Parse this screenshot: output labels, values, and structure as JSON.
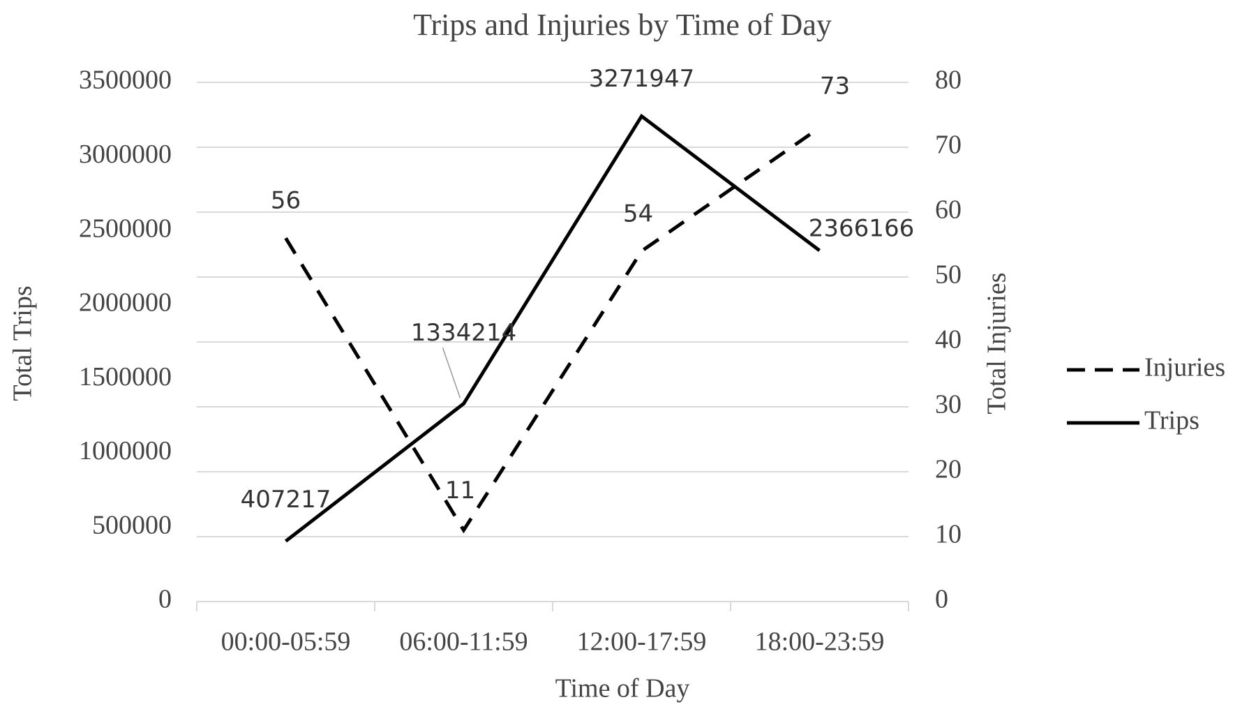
{
  "chart_data": {
    "type": "line",
    "title": "Trips and Injuries by Time of Day",
    "x_label": "Time of Day",
    "y_label": "Total Trips",
    "y2_label": "Total Injuries",
    "categories": [
      "00:00-05:59",
      "06:00-11:59",
      "12:00-17:59",
      "18:00-23:59"
    ],
    "series": [
      {
        "name": "Injuries",
        "color": "#000000",
        "line_style": "dashed",
        "axis": "y2",
        "values": [
          56,
          11,
          54,
          73
        ]
      },
      {
        "name": "Trips",
        "color": "#000000",
        "line_style": "solid",
        "values": [
          407217,
          1334214,
          3271947,
          2366166
        ]
      }
    ],
    "ylim": [
      0,
      3500000
    ],
    "yticks": [
      0,
      500000,
      1000000,
      1500000,
      2000000,
      2500000,
      3000000,
      3500000
    ],
    "y2lim": [
      0,
      80
    ],
    "y2ticks": [
      0,
      10,
      20,
      30,
      40,
      50,
      60,
      70,
      80
    ],
    "grid": true,
    "legend": "right"
  }
}
